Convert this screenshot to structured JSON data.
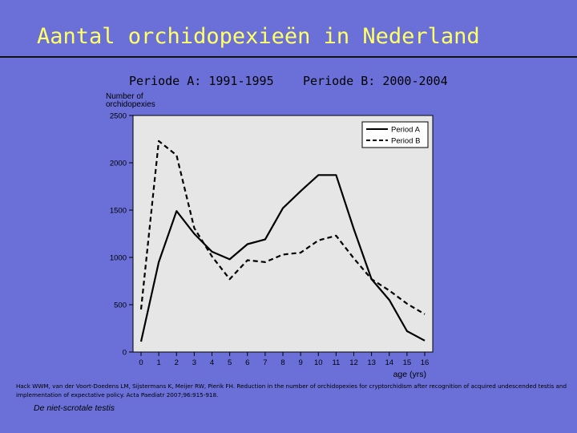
{
  "slide": {
    "title": "Aantal orchidopexieën in Nederland",
    "period_a": "Periode A: 1991-1995",
    "period_b": "Periode B: 2000-2004",
    "citation": "Hack WWM, van der Voort-Doedens LM, Sijstermans K, Meijer RW, Pierik FH. Reduction in the number of orchidopexies for cryptorchidism after recognition of acquired undescended testis and implementation of expectative policy. Acta Paediatr 2007;96:915-918.",
    "footer": "De niet-scrotale testis"
  },
  "chart_data": {
    "type": "line",
    "ylabel": "Number of orchidopexies",
    "xlabel": "age (yrs)",
    "x": [
      0,
      1,
      2,
      3,
      4,
      5,
      6,
      7,
      8,
      9,
      10,
      11,
      12,
      13,
      14,
      15,
      16
    ],
    "xticks": [
      "0",
      "1",
      "2",
      "3",
      "4",
      "5",
      "6",
      "7",
      "8",
      "9",
      "10",
      "11",
      "12",
      "13",
      "14",
      "15",
      "16"
    ],
    "yticks": [
      "0",
      "500",
      "1000",
      "1500",
      "2000",
      "2500"
    ],
    "xlim": [
      0,
      16
    ],
    "ylim": [
      0,
      2500
    ],
    "grid": false,
    "legend_position": "top-right",
    "plot_background": "#e6e6e6",
    "series": [
      {
        "name": "Period A",
        "style": "solid",
        "color": "#000000",
        "values": [
          110,
          950,
          1490,
          1250,
          1060,
          980,
          1140,
          1190,
          1520,
          1700,
          1870,
          1870,
          1300,
          770,
          550,
          220,
          120
        ]
      },
      {
        "name": "Period B",
        "style": "dashed",
        "color": "#000000",
        "values": [
          450,
          2230,
          2080,
          1310,
          1010,
          770,
          970,
          950,
          1030,
          1050,
          1180,
          1230,
          990,
          770,
          650,
          510,
          400
        ]
      }
    ]
  }
}
